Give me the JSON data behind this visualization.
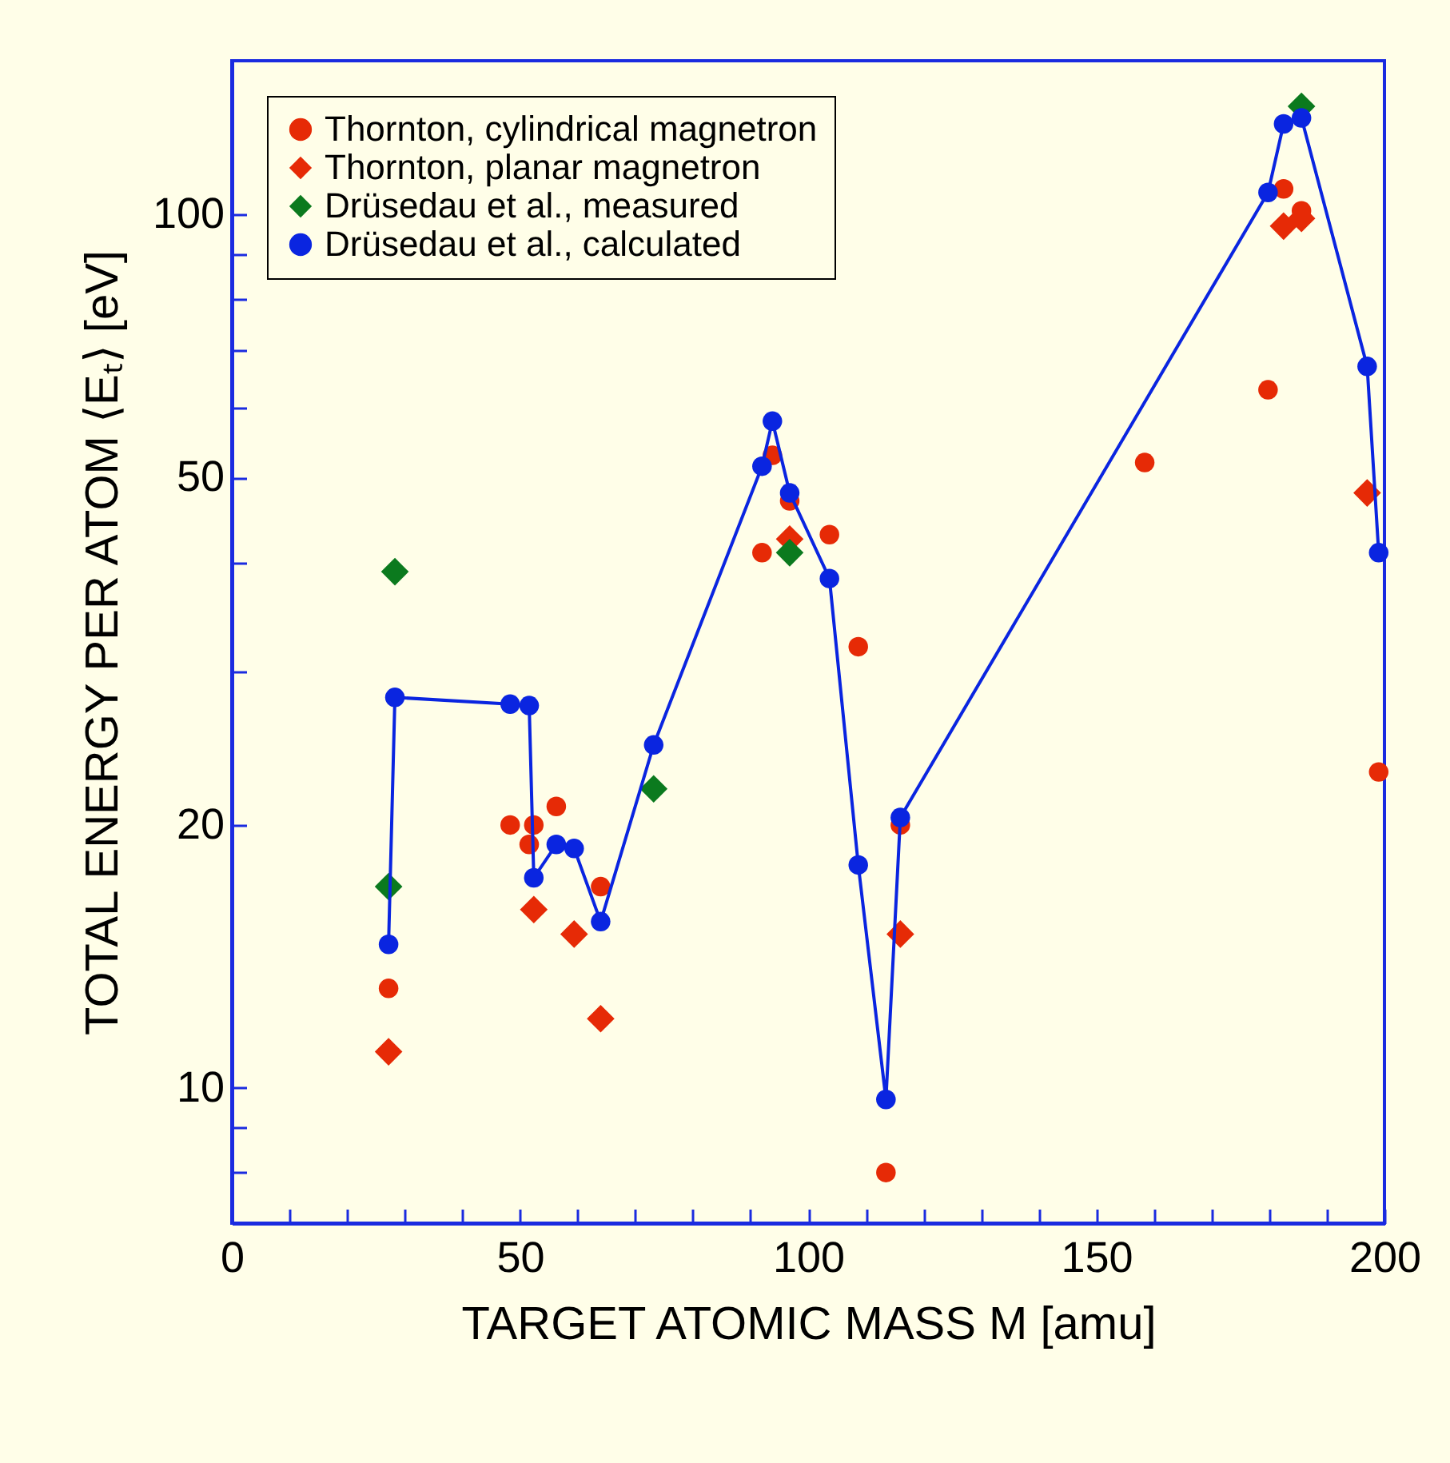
{
  "chart_data": {
    "type": "scatter",
    "xlabel": "TARGET ATOMIC MASS  M [amu]",
    "ylabel": "TOTAL ENERGY  PER  ATOM  ⟨Eₜ⟩ [eV]",
    "log": "y",
    "grid": false,
    "legend": "top left",
    "xlim": [
      0,
      200
    ],
    "xticks": [
      0,
      {
        "value": 10,
        "label": null
      },
      {
        "value": 20,
        "label": null
      },
      {
        "value": 30,
        "label": null
      },
      {
        "value": 40,
        "label": null
      },
      50,
      {
        "value": 60,
        "label": null
      },
      {
        "value": 70,
        "label": null
      },
      {
        "value": 80,
        "label": null
      },
      {
        "value": 90,
        "label": null
      },
      100,
      {
        "value": 110,
        "label": null
      },
      {
        "value": 120,
        "label": null
      },
      {
        "value": 130,
        "label": null
      },
      {
        "value": 140,
        "label": null
      },
      150,
      {
        "value": 160,
        "label": null
      },
      {
        "value": 170,
        "label": null
      },
      {
        "value": 180,
        "label": null
      },
      {
        "value": 190,
        "label": null
      },
      200
    ],
    "ylim": [
      7,
      150
    ],
    "yticks": [
      {
        "value": 8,
        "label": null
      },
      {
        "value": 9,
        "label": null
      },
      10,
      20,
      {
        "value": 30,
        "label": null
      },
      {
        "value": 40,
        "label": null
      },
      50,
      {
        "value": 60,
        "label": null
      },
      {
        "value": 70,
        "label": null
      },
      {
        "value": 80,
        "label": null
      },
      {
        "value": 90,
        "label": null
      },
      100
    ],
    "series": [
      {
        "name": "Thornton, cylindrical magnetron",
        "marker": "circle",
        "color": "#e62a06",
        "x": [
          27.2,
          48.3,
          51.6,
          52.4,
          56.3,
          64,
          92,
          93.8,
          96.8,
          103.7,
          108.7,
          113.5,
          116,
          158.4,
          179.8,
          182.5,
          185.6,
          199
        ],
        "values": [
          13,
          20,
          19,
          20,
          21,
          17,
          41,
          53,
          47,
          43,
          32,
          8,
          20,
          52,
          63,
          107,
          101,
          23
        ]
      },
      {
        "name": "Thornton, planar magnetron",
        "marker": "diamond",
        "color": "#e62a06",
        "x": [
          27.2,
          52.4,
          59.4,
          64,
          96.8,
          116,
          182.5,
          185.6,
          197
        ],
        "values": [
          11,
          16,
          15,
          12,
          42.5,
          15,
          97,
          99,
          48
        ]
      },
      {
        "name": "Drüsedau et al., measured",
        "marker": "diamond",
        "color": "#0b7a1e",
        "x": [
          27.2,
          28.3,
          73.2,
          96.8,
          185.6
        ],
        "values": [
          17,
          39,
          22,
          41,
          133
        ]
      },
      {
        "name": "Drüsedau et al., calculated",
        "type": "line",
        "marker": "circle",
        "color": "#0a25e0",
        "x": [
          27.2,
          28.3,
          48.3,
          51.6,
          52.4,
          56.3,
          59.4,
          64,
          73.2,
          92,
          93.8,
          96.8,
          103.7,
          108.7,
          113.5,
          116,
          179.8,
          182.5,
          185.6,
          197,
          199
        ],
        "values": [
          14.6,
          28,
          27.5,
          27.4,
          17.4,
          19,
          18.8,
          15.5,
          24.7,
          51.5,
          58,
          48,
          38.3,
          18,
          9.7,
          20.4,
          106,
          127,
          129,
          67,
          41
        ]
      }
    ]
  }
}
